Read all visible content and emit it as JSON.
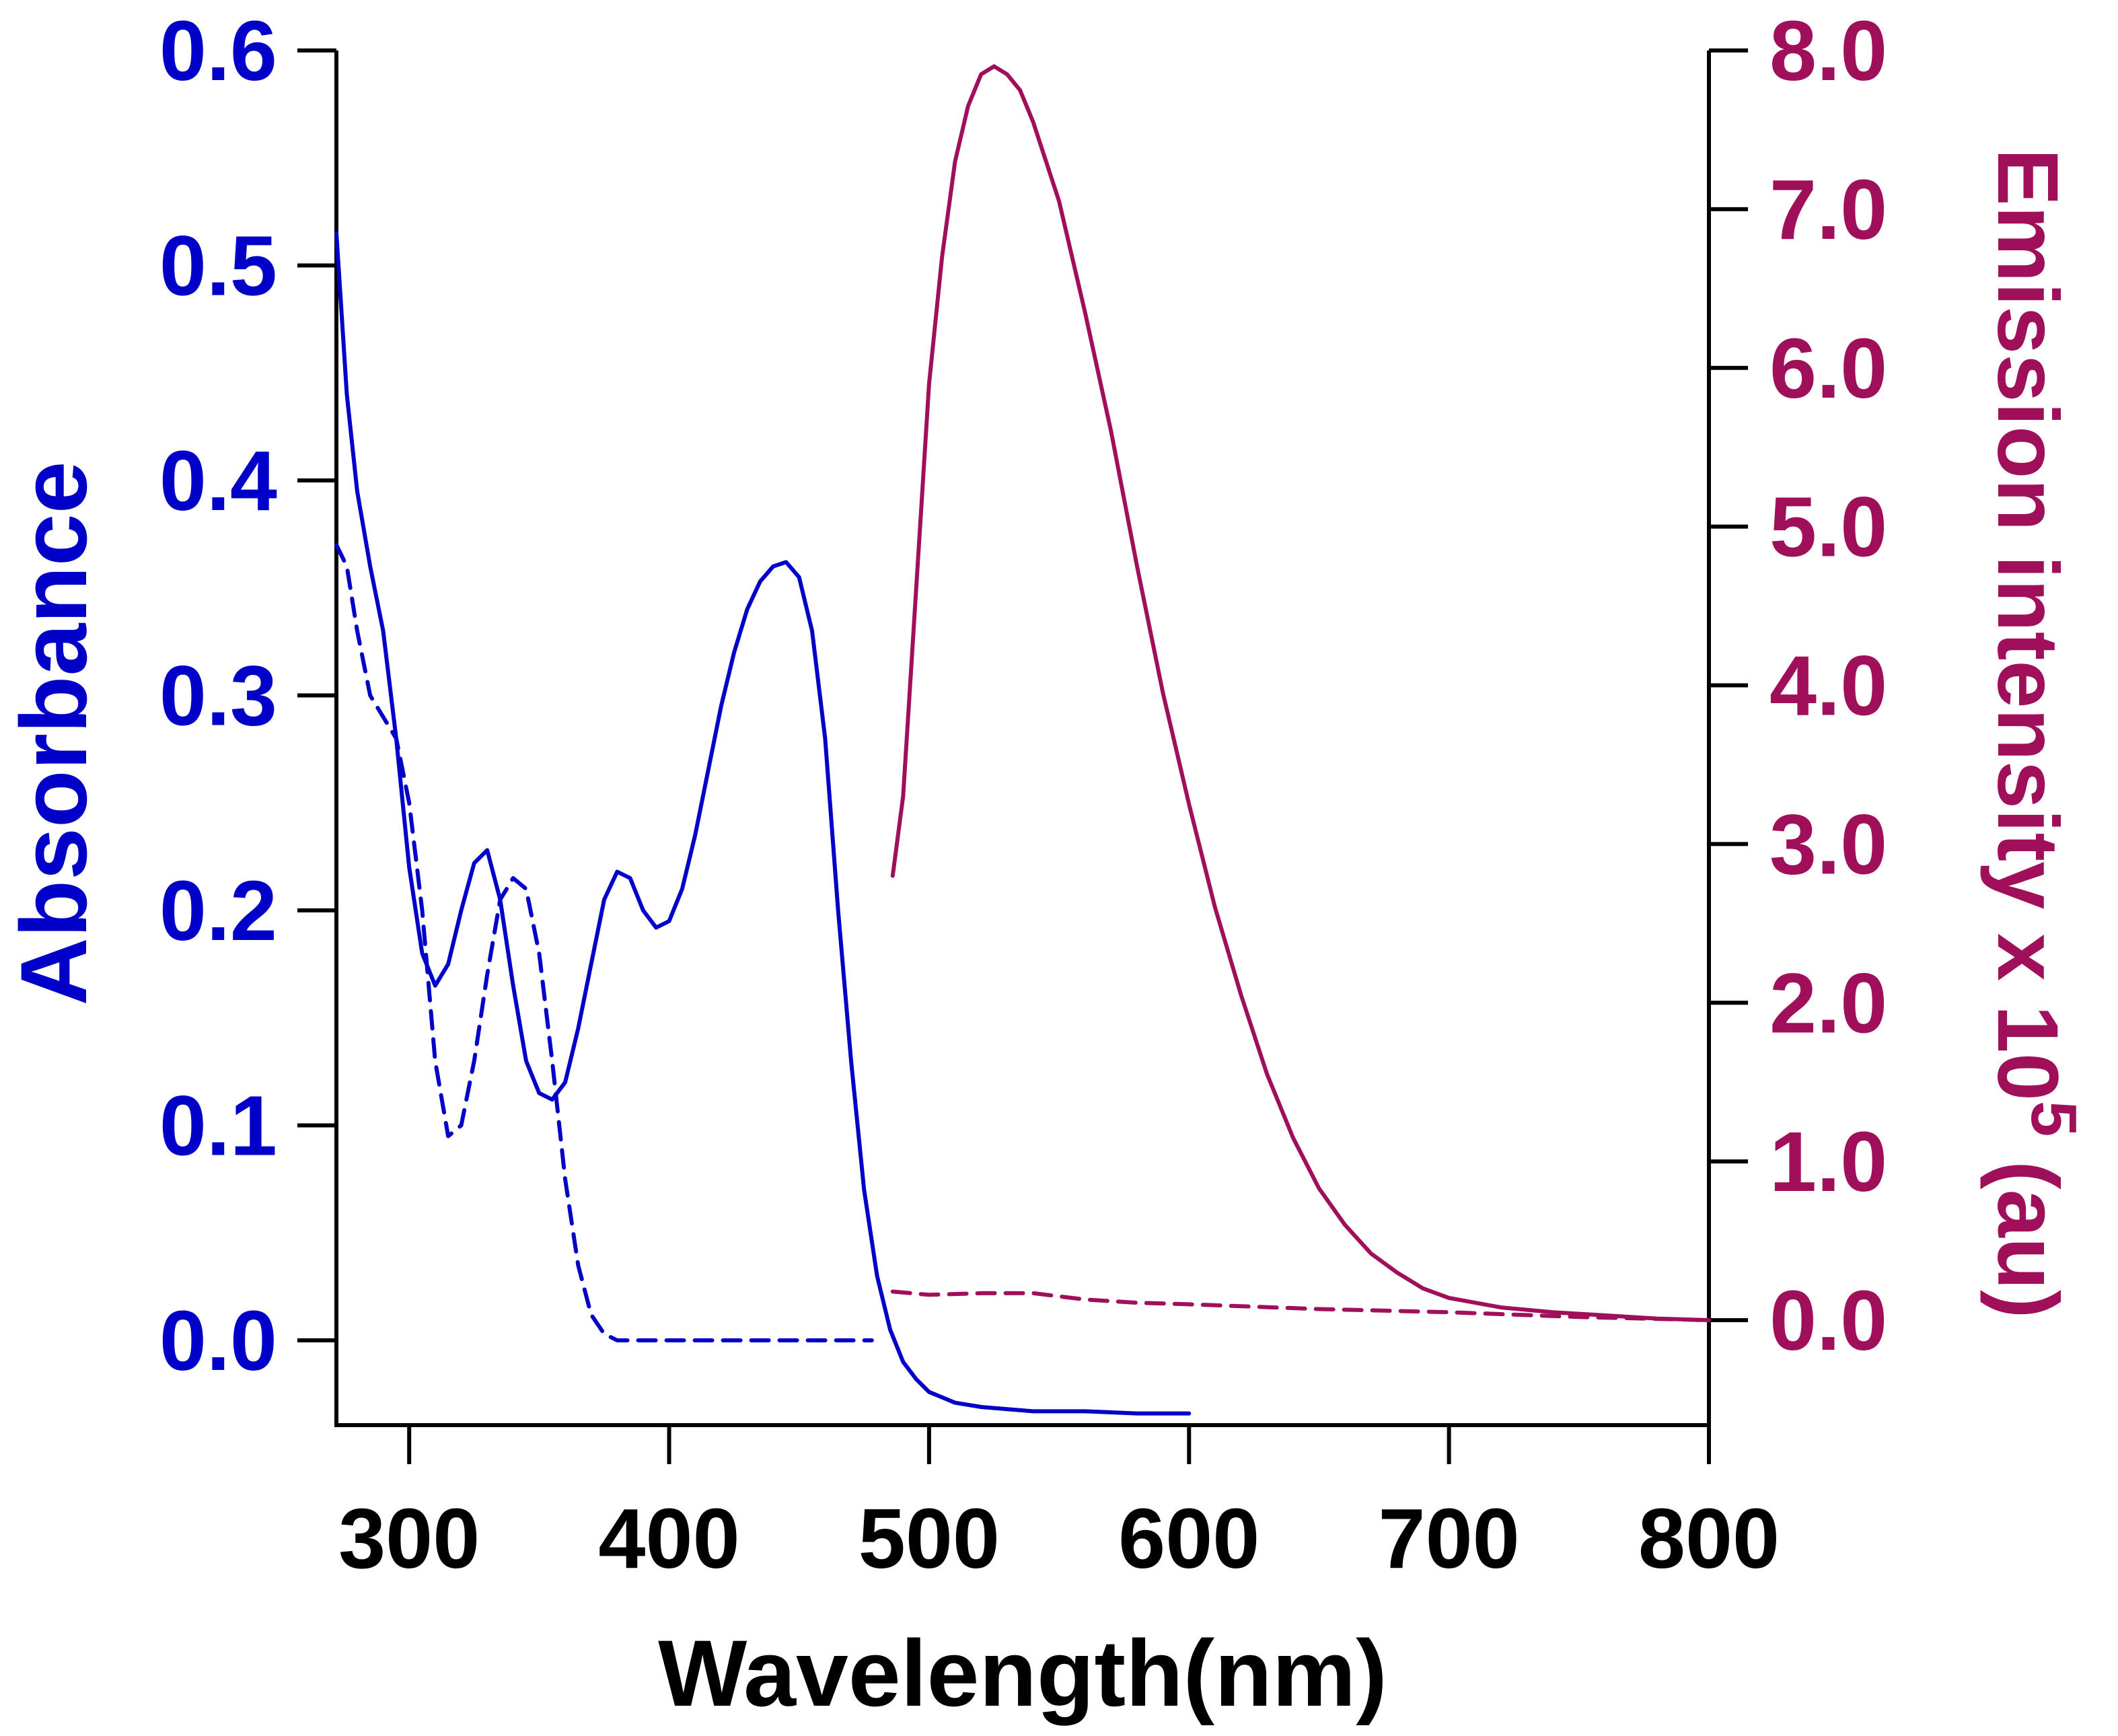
{
  "colors": {
    "absorbance": "#0000c8",
    "emission": "#a0105a",
    "axis": "#000000"
  },
  "chart_data": {
    "type": "line",
    "xlabel": "Wavelength(nm)",
    "ylabel_left": "Absorbance",
    "ylabel_right_base": "Emission intensity x 10",
    "ylabel_right_exp": "5",
    "ylabel_right_suffix": " (au)",
    "xlim": [
      272,
      800
    ],
    "ylim_left": [
      -0.035,
      0.6
    ],
    "ylim_right": [
      -0.55,
      8.0
    ],
    "x_ticks": [
      300,
      400,
      500,
      600,
      700,
      800
    ],
    "x_tick_labels": [
      "300",
      "400",
      "500",
      "600",
      "700",
      "800"
    ],
    "y_left_ticks": [
      0.0,
      0.1,
      0.2,
      0.3,
      0.4,
      0.5,
      0.6
    ],
    "y_left_tick_labels": [
      "0.0",
      "0.1",
      "0.2",
      "0.3",
      "0.4",
      "0.5",
      "0.6"
    ],
    "y_right_ticks": [
      0,
      1,
      2,
      3,
      4,
      5,
      6,
      7,
      8
    ],
    "y_right_tick_labels": [
      "0.0",
      "1.0",
      "2.0",
      "3.0",
      "4.0",
      "5.0",
      "6.0",
      "7.0",
      "8.0"
    ],
    "series": [
      {
        "name": "absorbance-solid",
        "axis": "left",
        "style": "solid",
        "x": [
          272,
          276,
          280,
          285,
          290,
          295,
          300,
          305,
          310,
          315,
          320,
          325,
          330,
          335,
          340,
          345,
          350,
          355,
          360,
          365,
          370,
          375,
          380,
          385,
          390,
          395,
          400,
          405,
          410,
          415,
          420,
          425,
          430,
          435,
          440,
          445,
          450,
          455,
          460,
          465,
          470,
          475,
          480,
          485,
          490,
          495,
          500,
          510,
          520,
          530,
          540,
          560,
          580,
          600
        ],
        "y": [
          0.515,
          0.44,
          0.395,
          0.36,
          0.33,
          0.28,
          0.22,
          0.18,
          0.165,
          0.175,
          0.2,
          0.222,
          0.228,
          0.205,
          0.165,
          0.13,
          0.115,
          0.112,
          0.12,
          0.145,
          0.175,
          0.205,
          0.218,
          0.215,
          0.2,
          0.192,
          0.195,
          0.21,
          0.235,
          0.265,
          0.295,
          0.32,
          0.34,
          0.353,
          0.36,
          0.362,
          0.355,
          0.33,
          0.28,
          0.2,
          0.13,
          0.07,
          0.03,
          0.005,
          -0.01,
          -0.018,
          -0.024,
          -0.029,
          -0.031,
          -0.032,
          -0.033,
          -0.033,
          -0.034,
          -0.034
        ]
      },
      {
        "name": "absorbance-dashed",
        "axis": "left",
        "style": "dashed",
        "x": [
          272,
          276,
          280,
          285,
          290,
          295,
          300,
          305,
          310,
          315,
          320,
          325,
          330,
          335,
          340,
          345,
          350,
          355,
          360,
          365,
          370,
          375,
          380,
          390,
          400,
          420,
          440,
          460,
          478
        ],
        "y": [
          0.37,
          0.36,
          0.33,
          0.3,
          0.29,
          0.28,
          0.25,
          0.2,
          0.13,
          0.095,
          0.1,
          0.13,
          0.17,
          0.205,
          0.215,
          0.21,
          0.18,
          0.13,
          0.075,
          0.035,
          0.012,
          0.003,
          0.0,
          0.0,
          0.0,
          0.0,
          0.0,
          0.0,
          0.0
        ]
      },
      {
        "name": "emission-solid",
        "axis": "right",
        "style": "solid",
        "x": [
          486,
          490,
          495,
          500,
          505,
          510,
          515,
          520,
          525,
          530,
          535,
          540,
          545,
          550,
          560,
          570,
          580,
          590,
          600,
          610,
          620,
          630,
          640,
          650,
          660,
          670,
          680,
          690,
          700,
          720,
          740,
          760,
          780,
          800
        ],
        "y": [
          2.8,
          3.3,
          4.6,
          5.9,
          6.7,
          7.3,
          7.65,
          7.85,
          7.9,
          7.85,
          7.75,
          7.55,
          7.3,
          7.05,
          6.35,
          5.6,
          4.75,
          3.95,
          3.25,
          2.6,
          2.05,
          1.55,
          1.15,
          0.83,
          0.6,
          0.42,
          0.3,
          0.2,
          0.14,
          0.08,
          0.05,
          0.03,
          0.01,
          0.0
        ]
      },
      {
        "name": "emission-dashed",
        "axis": "right",
        "style": "dashed",
        "x": [
          486,
          500,
          520,
          540,
          560,
          580,
          600,
          650,
          700,
          750,
          800
        ],
        "y": [
          0.18,
          0.16,
          0.17,
          0.17,
          0.13,
          0.11,
          0.1,
          0.07,
          0.05,
          0.02,
          0.0
        ]
      }
    ]
  }
}
